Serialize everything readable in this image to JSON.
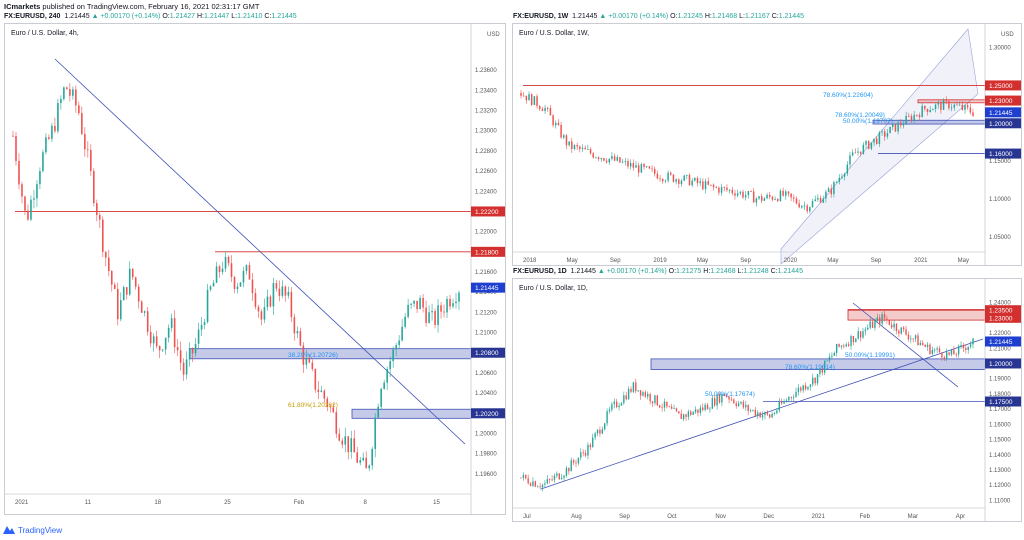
{
  "header": {
    "author": "ICmarkets",
    "published": "published on TradingView.com, February 16, 2021 02:31:17 GMT"
  },
  "logo": {
    "text": "TradingView",
    "icon": "tradingview-logo-icon"
  },
  "colors": {
    "up": "#26a69a",
    "down": "#ef5350",
    "zone_blue": "#3f51b5",
    "zone_red": "#d32f2f",
    "fib_text": "#2196f3",
    "fib_gold": "#c79b00"
  },
  "panes": {
    "left": {
      "symbol": "FX:EURUSD, 240",
      "quote": {
        "o": "1.21427",
        "h": "1.21447",
        "l": "1.21410",
        "c": "1.21445",
        "chg": "▲ +0.00170 (+0.14%)"
      },
      "title": "Euro / U.S. Dollar, 4h,",
      "currency": "USD"
    },
    "topright": {
      "symbol": "FX:EURUSD, 1W",
      "quote": {
        "o": "1.21245",
        "h": "1.21468",
        "l": "1.21167",
        "c": "1.21445",
        "chg": "▲ +0.00170 (+0.14%)"
      },
      "title": "Euro / U.S. Dollar, 1W,",
      "currency": "USD"
    },
    "bottomright": {
      "symbol": "FX:EURUSD, 1D",
      "quote": {
        "o": "1.21275",
        "h": "1.21468",
        "l": "1.21248",
        "c": "1.21445",
        "chg": "▲ +0.00170 (+0.14%)"
      },
      "title": "Euro / U.S. Dollar, 1D,",
      "currency": ""
    }
  },
  "chart_data": [
    {
      "id": "left",
      "type": "candlestick",
      "title": "Euro / U.S. Dollar, 4h,",
      "currency": "USD",
      "ylim": [
        1.194,
        1.238
      ],
      "y_ticks": [
        "1.23600",
        "1.23400",
        "1.23200",
        "1.23000",
        "1.22800",
        "1.22600",
        "1.22400",
        "1.22200",
        "1.22000",
        "1.21800",
        "1.21600",
        "1.21400",
        "1.21200",
        "1.21000",
        "1.20800",
        "1.20600",
        "1.20400",
        "1.20200",
        "1.20000",
        "1.19800",
        "1.19600"
      ],
      "x_ticks": [
        "2021",
        "11",
        "18",
        "25",
        "Feb",
        "8",
        "15"
      ],
      "close_path": [
        1.2295,
        1.221,
        1.2265,
        1.23,
        1.2345,
        1.232,
        1.225,
        1.218,
        1.212,
        1.216,
        1.212,
        1.208,
        1.211,
        1.206,
        1.209,
        1.214,
        1.217,
        1.215,
        1.216,
        1.211,
        1.215,
        1.213,
        1.208,
        1.205,
        1.203,
        1.2,
        1.198,
        1.196,
        1.205,
        1.208,
        1.212,
        1.213,
        1.211,
        1.213,
        1.2145
      ],
      "labels": [
        {
          "text": "1.22200",
          "value": 1.222,
          "kind": "red"
        },
        {
          "text": "1.21800",
          "value": 1.218,
          "kind": "red"
        },
        {
          "text": "1.21445",
          "value": 1.21445,
          "kind": "current"
        },
        {
          "text": "1.20800",
          "value": 1.208,
          "kind": "blue"
        },
        {
          "text": "1.20200",
          "value": 1.202,
          "kind": "blue"
        }
      ],
      "annotations": [
        "38.20%(1.20726)",
        "61.80%(1.20262)"
      ]
    },
    {
      "id": "topright",
      "type": "candlestick",
      "title": "Euro / U.S. Dollar, 1W,",
      "currency": "USD",
      "ylim": [
        1.03,
        1.31
      ],
      "y_ticks": [
        "1.30000",
        "1.25000",
        "1.20000",
        "1.15000",
        "1.10000",
        "1.05000"
      ],
      "x_ticks": [
        "2018",
        "May",
        "Sep",
        "2019",
        "May",
        "Sep",
        "2020",
        "May",
        "Sep",
        "2021",
        "May"
      ],
      "close_path": [
        1.24,
        1.22,
        1.17,
        1.16,
        1.15,
        1.14,
        1.13,
        1.125,
        1.115,
        1.11,
        1.1,
        1.105,
        1.09,
        1.11,
        1.16,
        1.18,
        1.2,
        1.22,
        1.225,
        1.215
      ],
      "labels": [
        {
          "text": "1.25000",
          "value": 1.25,
          "kind": "red"
        },
        {
          "text": "1.23000",
          "value": 1.23,
          "kind": "red"
        },
        {
          "text": "1.21445",
          "value": 1.21445,
          "kind": "current"
        },
        {
          "text": "1.20000",
          "value": 1.2,
          "kind": "blue"
        },
        {
          "text": "1.16000",
          "value": 1.16,
          "kind": "blue"
        }
      ],
      "annotations": [
        "78.60%(1.22604)",
        "78.60%(1.20049)",
        "50.00%(1.19707)"
      ]
    },
    {
      "id": "bottomright",
      "type": "candlestick",
      "title": "Euro / U.S. Dollar, 1D,",
      "currency": "",
      "ylim": [
        1.105,
        1.245
      ],
      "y_ticks": [
        "1.24000",
        "1.23000",
        "1.22000",
        "1.21000",
        "1.20000",
        "1.19000",
        "1.18000",
        "1.17000",
        "1.16000",
        "1.15000",
        "1.14000",
        "1.13000",
        "1.12000",
        "1.11000"
      ],
      "x_ticks": [
        "Jul",
        "Aug",
        "Sep",
        "Oct",
        "Nov",
        "Dec",
        "2021",
        "Feb",
        "Mar",
        "Apr"
      ],
      "close_path": [
        1.125,
        1.12,
        1.13,
        1.145,
        1.17,
        1.185,
        1.175,
        1.165,
        1.17,
        1.18,
        1.17,
        1.165,
        1.18,
        1.19,
        1.21,
        1.22,
        1.23,
        1.22,
        1.21,
        1.205,
        1.2145
      ],
      "labels": [
        {
          "text": "1.23500",
          "value": 1.235,
          "kind": "red"
        },
        {
          "text": "1.23000",
          "value": 1.23,
          "kind": "red"
        },
        {
          "text": "1.21445",
          "value": 1.21445,
          "kind": "current"
        },
        {
          "text": "1.20000",
          "value": 1.2,
          "kind": "blue"
        },
        {
          "text": "1.17500",
          "value": 1.175,
          "kind": "blue"
        }
      ],
      "annotations": [
        "50.00%(1.19991)",
        "78.60%(1.19614)",
        "50.00%(1.17674)"
      ]
    }
  ]
}
